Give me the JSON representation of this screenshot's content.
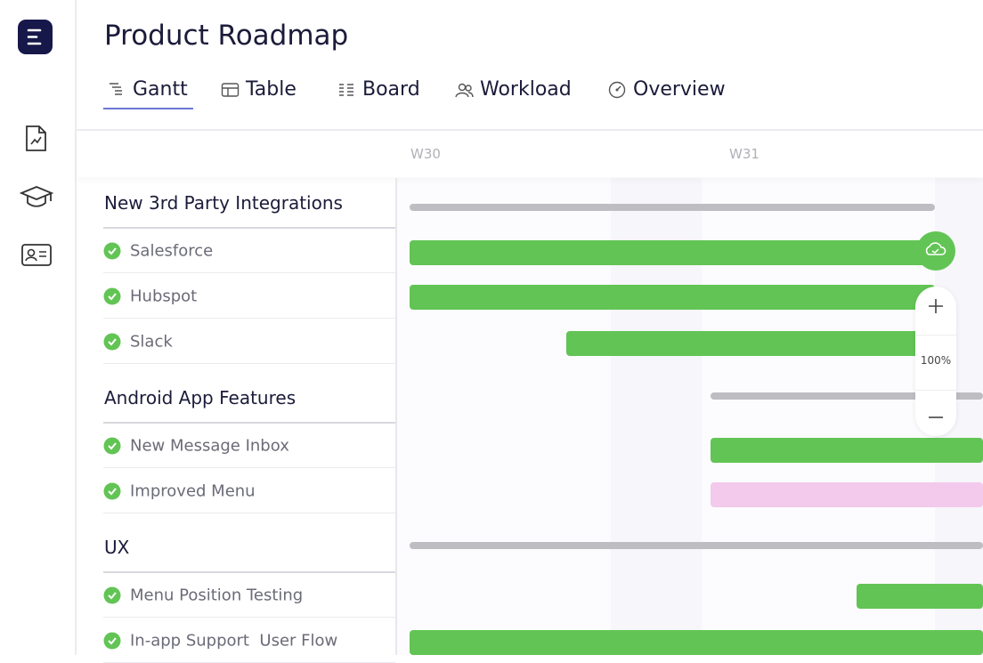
{
  "header": {
    "title": "Product Roadmap"
  },
  "tabs": [
    "Gantt",
    "Table",
    "Board",
    "Workload",
    "Overview"
  ],
  "timeline": {
    "weeks": [
      "W30",
      "W31"
    ]
  },
  "groups": [
    {
      "name": "New 3rd Party Integrations",
      "tasks": [
        "Salesforce",
        "Hubspot",
        "Slack"
      ]
    },
    {
      "name": "Android App Features",
      "tasks": [
        "New Message Inbox",
        "Improved Menu"
      ]
    },
    {
      "name": "UX",
      "tasks": [
        "Menu Position Testing",
        "In-app Support  User Flow"
      ]
    }
  ],
  "zoom": {
    "level": "100%"
  }
}
